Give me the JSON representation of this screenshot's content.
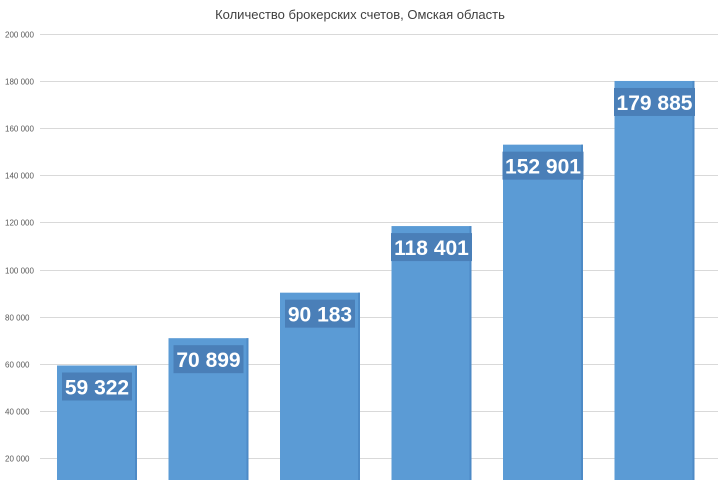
{
  "chart_data": {
    "type": "bar",
    "title": "Количество брокерских счетов, Омская область",
    "xlabel": "",
    "ylabel": "",
    "ylim": [
      0,
      200000
    ],
    "yticks": [
      20000,
      40000,
      60000,
      80000,
      100000,
      120000,
      140000,
      160000,
      180000,
      200000
    ],
    "ytick_labels": [
      "20 000",
      "40 000",
      "60 000",
      "80 000",
      "100 000",
      "120 000",
      "140 000",
      "160 000",
      "180 000",
      "200 000"
    ],
    "values": [
      59322,
      70899,
      90183,
      118401,
      152901,
      179885
    ],
    "value_labels": [
      "59 322",
      "70 899",
      "90 183",
      "118 401",
      "152 901",
      "179 885"
    ],
    "grid": true,
    "legend": "none",
    "colors": {
      "bar": "#5b9bd5",
      "bar_right_edge": "#4d8ac6",
      "label_box": "#4a7fb8",
      "label_text": "#ffffff",
      "gridline": "#d9d9d9",
      "tick_text": "#595959",
      "title_text": "#404040"
    }
  }
}
